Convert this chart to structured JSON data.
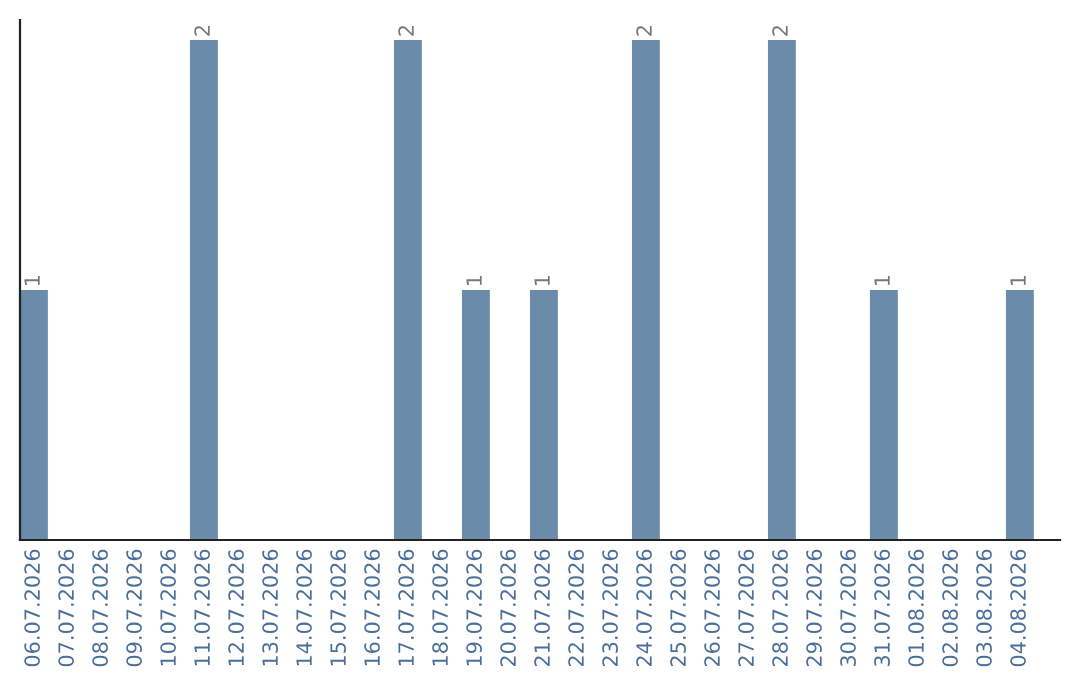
{
  "chart_data": {
    "type": "bar",
    "categories": [
      "06.07.2026",
      "07.07.2026",
      "08.07.2026",
      "09.07.2026",
      "10.07.2026",
      "11.07.2026",
      "12.07.2026",
      "13.07.2026",
      "14.07.2026",
      "15.07.2026",
      "16.07.2026",
      "17.07.2026",
      "18.07.2026",
      "19.07.2026",
      "20.07.2026",
      "21.07.2026",
      "22.07.2026",
      "23.07.2026",
      "24.07.2026",
      "25.07.2026",
      "26.07.2026",
      "27.07.2026",
      "28.07.2026",
      "29.07.2026",
      "30.07.2026",
      "31.07.2026",
      "01.08.2026",
      "02.08.2026",
      "03.08.2026",
      "04.08.2026"
    ],
    "values": [
      1,
      0,
      0,
      0,
      0,
      2,
      0,
      0,
      0,
      0,
      0,
      2,
      0,
      1,
      0,
      1,
      0,
      0,
      2,
      0,
      0,
      0,
      2,
      0,
      0,
      1,
      0,
      0,
      0,
      1
    ],
    "value_labels": [
      "1",
      null,
      null,
      null,
      null,
      "2",
      null,
      null,
      null,
      null,
      null,
      "2",
      null,
      "1",
      null,
      "1",
      null,
      null,
      "2",
      null,
      null,
      null,
      "2",
      null,
      null,
      "1",
      null,
      null,
      null,
      "1"
    ],
    "color": "#6a8caa",
    "tick_labels": "x",
    "grid": false,
    "legend": false
  }
}
